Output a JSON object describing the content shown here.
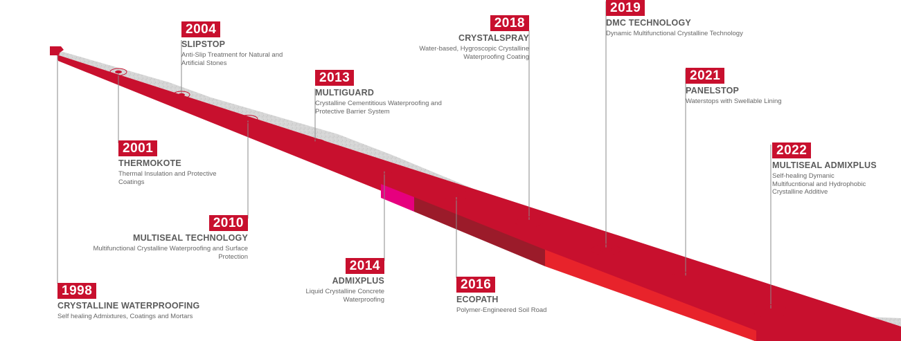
{
  "milestones": [
    {
      "year": "1998",
      "title": "CRYSTALLINE WATERPROOFING",
      "desc": "Self healing Admixtures, Coatings and Mortars"
    },
    {
      "year": "2001",
      "title": "THERMOKOTE",
      "desc": "Thermal Insulation and Protective Coatings"
    },
    {
      "year": "2004",
      "title": "SLIPSTOP",
      "desc": "Anti-Slip Treatment for Natural and Artificial Stones"
    },
    {
      "year": "2010",
      "title": "MULTISEAL TECHNOLOGY",
      "desc": "Multifunctional Crystalline Waterproofing and Surface Protection"
    },
    {
      "year": "2013",
      "title": "MULTIGUARD",
      "desc": "Crystalline Cementitious Waterproofing and Protective Barrier System"
    },
    {
      "year": "2014",
      "title": "ADMIXPLUS",
      "desc": "Liquid Crystalline Concrete Waterproofing"
    },
    {
      "year": "2016",
      "title": "ECOPATH",
      "desc": "Polymer-Engineered Soil Road"
    },
    {
      "year": "2018",
      "title": "CRYSTALSPRAY",
      "desc": "Water-based, Hygroscopic Crystalline Waterproofing Coating"
    },
    {
      "year": "2019",
      "title": "DMC TECHNOLOGY",
      "desc": "Dynamic Multifunctional Crystalline Technology"
    },
    {
      "year": "2021",
      "title": "PANELSTOP",
      "desc": "Waterstops with Swellable Lining"
    },
    {
      "year": "2022",
      "title": "MULTISEAL ADMIXPLUS",
      "desc": "Self-healing Dymanic Multifucntional and Hydrophobic Crystalline Additive"
    }
  ],
  "colors": {
    "accent": "#c8102e",
    "road": "#d9d9d9",
    "magenta": "#e6007e",
    "dark_red": "#9b1b2a",
    "bright_red": "#e8232b",
    "leader": "#8a8a8a"
  }
}
